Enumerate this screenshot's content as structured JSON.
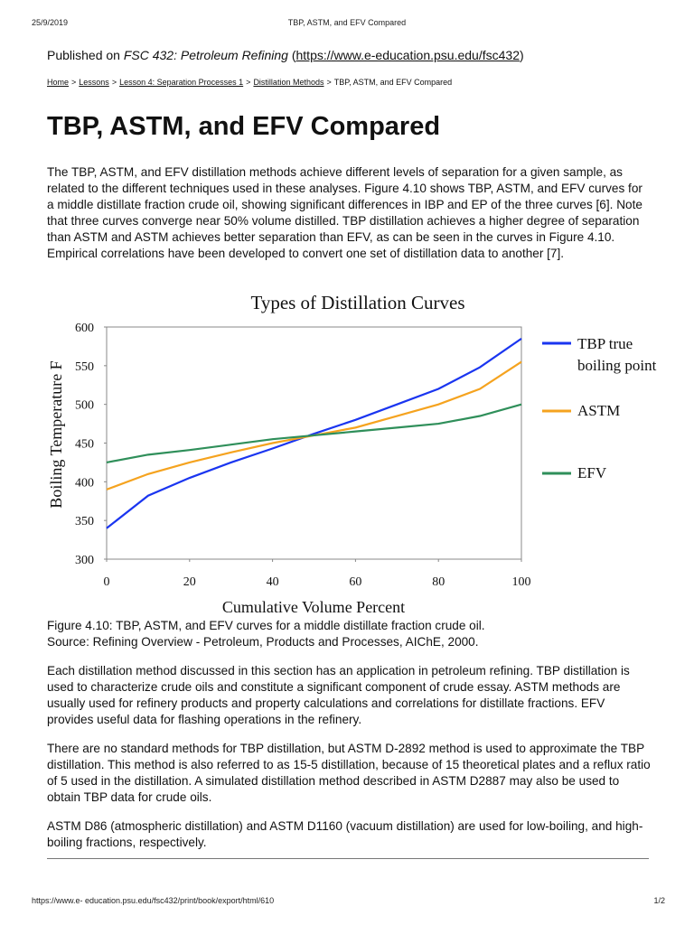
{
  "print_header": {
    "date": "25/9/2019",
    "title": "TBP, ASTM, and EFV Compared"
  },
  "published": {
    "prefix": "Published on",
    "course": "FSC 432: Petroleum Refining",
    "open": "(",
    "url": "https://www.e-education.psu.edu/fsc432",
    "close": ")"
  },
  "breadcrumb": {
    "separator": ">",
    "links": [
      "Home",
      "Lessons",
      "Lesson 4: Separation Processes 1",
      "Distillation Methods"
    ],
    "current": "TBP, ASTM, and EFV Compared"
  },
  "heading": "TBP, ASTM, and EFV Compared",
  "paragraphs_before": [
    "The TBP, ASTM, and EFV distillation methods achieve different levels of separation for a given sample, as related to the different techniques used in these analyses. Figure 4.10 shows TBP, ASTM, and EFV curves for a middle distillate fraction crude oil, showing significant differences in IBP and EP of the three curves [6]. Note that three curves converge near 50% volume distilled. TBP distillation achieves a higher degree of separation than ASTM and ASTM achieves better separation than EFV, as can be seen in the curves in Figure 4.10. Empirical correlations have been developed to convert one set of distillation data to another [7]."
  ],
  "chart_data": {
    "type": "line",
    "title": "Types of Distillation Curves",
    "x_label": "Cumulative Volume Percent",
    "y_label": "Boiling Temperature F",
    "x": [
      0,
      10,
      20,
      30,
      40,
      50,
      60,
      70,
      80,
      90,
      100
    ],
    "series": [
      {
        "name": "TBP true boiling point",
        "color": "#1a35f0",
        "values": [
          340,
          382,
          405,
          425,
          443,
          462,
          480,
          500,
          520,
          548,
          585
        ]
      },
      {
        "name": "ASTM",
        "color": "#f5a31f",
        "values": [
          390,
          410,
          425,
          438,
          450,
          460,
          470,
          485,
          500,
          520,
          555
        ]
      },
      {
        "name": "EFV",
        "color": "#2f8f5a",
        "values": [
          425,
          435,
          441,
          448,
          455,
          460,
          465,
          470,
          475,
          485,
          500
        ]
      }
    ],
    "xlim": [
      0,
      100
    ],
    "xticks": [
      0,
      20,
      40,
      60,
      80,
      100
    ],
    "ylim": [
      300,
      600
    ],
    "yticks": [
      300,
      350,
      400,
      450,
      500,
      550,
      600
    ],
    "grid": false,
    "legend": "right"
  },
  "caption": [
    "Figure 4.10: TBP, ASTM, and EFV curves for a middle distillate fraction crude oil.",
    "Source: Refining Overview - Petroleum, Products and Processes, AIChE, 2000."
  ],
  "paragraphs_after": [
    "Each distillation method discussed in this section has an application in petroleum refining. TBP distillation is used to characterize crude oils and constitute a significant component of crude essay. ASTM methods are usually used for refinery products and property calculations and correlations for distillate fractions. EFV provides useful data for flashing operations in the refinery.",
    "There are no standard methods for TBP distillation, but ASTM D-2892 method is used to approximate the TBP distillation. This method is also referred to as 15-5 distillation, because of 15 theoretical plates and a reflux ratio of 5 used in the distillation. A simulated distillation method described in ASTM D2887 may also be used to obtain TBP data for crude oils.",
    "ASTM D86 (atmospheric distillation) and ASTM D1160 (vacuum distillation) are used for low-boiling, and high-boiling fractions, respectively."
  ],
  "print_footer": {
    "url": "https://www.e- education.psu.edu/fsc432/print/book/export/html/610",
    "page": "1/2"
  }
}
